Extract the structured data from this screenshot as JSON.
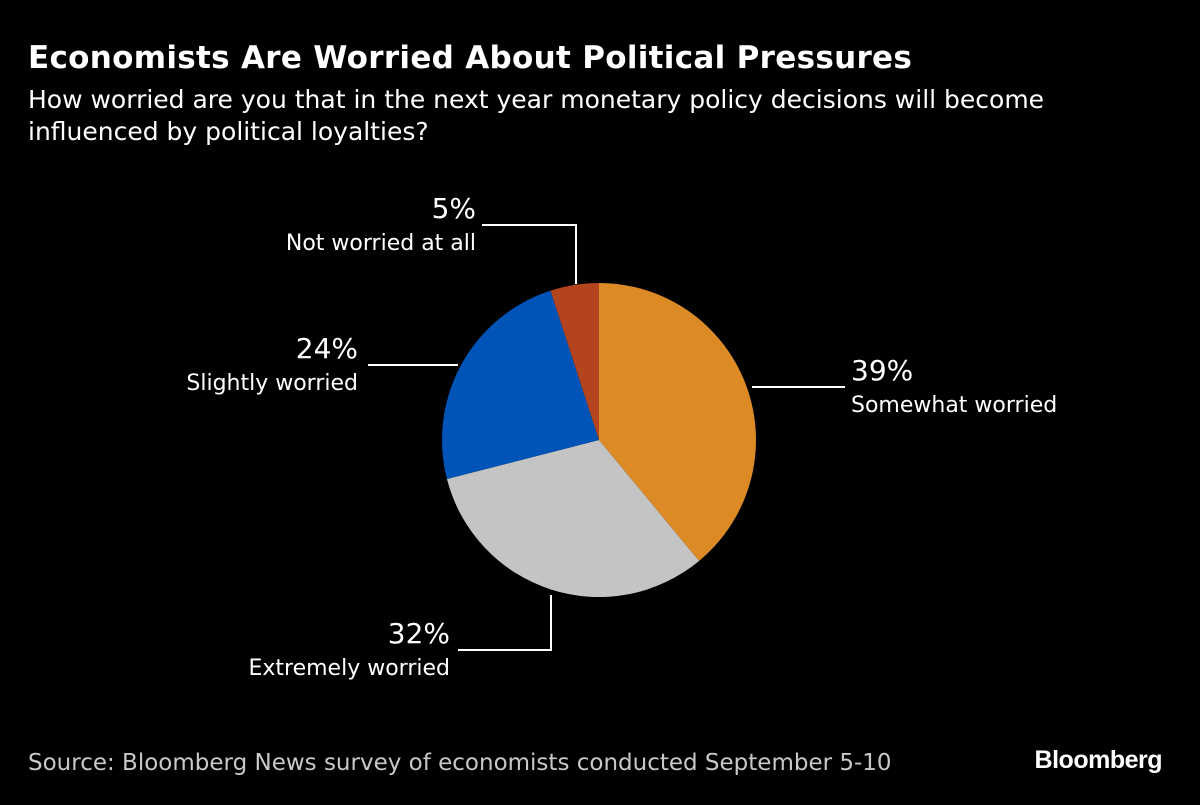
{
  "chart_data": {
    "type": "pie",
    "title": "Economists Are Worried About Political Pressures",
    "subtitle": "How worried are you that in the next year monetary policy decisions will become influenced by political loyalties?",
    "slices": [
      {
        "label": "Somewhat worried",
        "value": 39,
        "value_label": "39%",
        "color": "#db8a26"
      },
      {
        "label": "Extremely worried",
        "value": 32,
        "value_label": "32%",
        "color": "#c4c4c4"
      },
      {
        "label": "Slightly worried",
        "value": 24,
        "value_label": "24%",
        "color": "#0054b8"
      },
      {
        "label": "Not worried at all",
        "value": 5,
        "value_label": "5%",
        "color": "#b4441e"
      }
    ],
    "start_angle": "12 o'clock",
    "direction": "clockwise",
    "legend": "none"
  },
  "footer": {
    "source": "Source: Bloomberg News survey of economists conducted September 5-10",
    "logo": "Bloomberg"
  }
}
